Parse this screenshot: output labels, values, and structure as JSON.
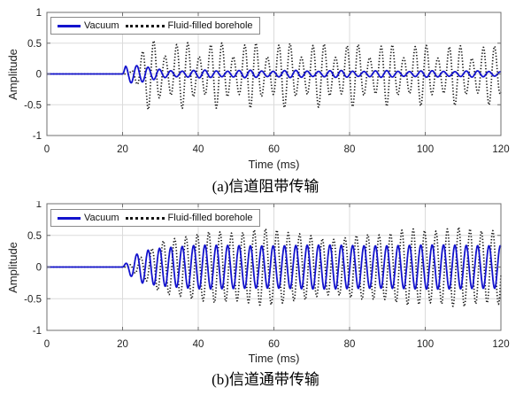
{
  "colors": {
    "vacuum_line": "#1313cd",
    "fluid_line": "#161616",
    "grid": "#dbdbdb",
    "axis": "#6f6f6f",
    "tick_label": "#1f1f1f",
    "background": "#ffffff"
  },
  "chart_data": [
    {
      "type": "line",
      "caption": "(a)信道阻带传输",
      "xlabel": "Time (ms)",
      "ylabel": "Amplitude",
      "xlim": [
        0,
        120
      ],
      "ylim": [
        -1,
        1
      ],
      "xticks": [
        0,
        20,
        40,
        60,
        80,
        100,
        120
      ],
      "yticks": [
        -1,
        -0.5,
        0,
        0.5,
        1
      ],
      "grid": true,
      "legend_position": "top-left",
      "series": [
        {
          "name": "Vacuum",
          "line_style": "solid",
          "color": "#1313cd",
          "waveform": {
            "freq_cycles_per_ms": 0.333,
            "onset_ms": 20,
            "phase_rad": 0,
            "envelope_keypoints": [
              [
                0,
                0
              ],
              [
                20,
                0
              ],
              [
                20.8,
                0.16
              ],
              [
                22.5,
                0.21
              ],
              [
                25,
                0.17
              ],
              [
                27.5,
                0.1
              ],
              [
                31,
                0.065
              ],
              [
                120,
                0.05
              ]
            ],
            "amplitude_modulation": {
              "depth": 0.3,
              "period_ms": 12,
              "phase_rad": 0
            }
          }
        },
        {
          "name": "Fluid-filled borehole",
          "line_style": "dotted",
          "color": "#161616",
          "waveform": {
            "freq_cycles_per_ms": 0.333,
            "onset_ms": 21.5,
            "phase_rad": 0,
            "envelope_keypoints": [
              [
                0,
                0
              ],
              [
                21.5,
                0
              ],
              [
                24,
                0.3
              ],
              [
                27,
                0.6
              ],
              [
                35,
                0.56
              ],
              [
                60,
                0.55
              ],
              [
                120,
                0.5
              ]
            ],
            "amplitude_modulation": {
              "depth": 0.5,
              "period_ms": 9,
              "phase_rad": 0.9
            }
          }
        }
      ]
    },
    {
      "type": "line",
      "caption": "(b)信道通带传输",
      "xlabel": "Time (ms)",
      "ylabel": "Amplitude",
      "xlim": [
        0,
        120
      ],
      "ylim": [
        -1,
        1
      ],
      "xticks": [
        0,
        20,
        40,
        60,
        80,
        100,
        120
      ],
      "yticks": [
        -1,
        -0.5,
        0,
        0.5,
        1
      ],
      "grid": true,
      "legend_position": "top-left",
      "series": [
        {
          "name": "Vacuum",
          "line_style": "solid",
          "color": "#1313cd",
          "waveform": {
            "freq_cycles_per_ms": 0.333,
            "onset_ms": 20,
            "phase_rad": 0,
            "envelope_keypoints": [
              [
                0,
                0
              ],
              [
                20,
                0
              ],
              [
                22,
                0.14
              ],
              [
                25,
                0.26
              ],
              [
                30,
                0.31
              ],
              [
                40,
                0.345
              ],
              [
                120,
                0.35
              ]
            ],
            "amplitude_modulation": {
              "depth": 0.04,
              "period_ms": 30,
              "phase_rad": 0
            }
          }
        },
        {
          "name": "Fluid-filled borehole",
          "line_style": "dotted",
          "color": "#161616",
          "waveform": {
            "freq_cycles_per_ms": 0.333,
            "onset_ms": 21,
            "phase_rad": 0,
            "envelope_keypoints": [
              [
                0,
                0
              ],
              [
                21,
                0
              ],
              [
                25,
                0.18
              ],
              [
                30,
                0.4
              ],
              [
                38,
                0.54
              ],
              [
                50,
                0.58
              ],
              [
                62,
                0.62
              ],
              [
                72,
                0.46
              ],
              [
                82,
                0.5
              ],
              [
                95,
                0.6
              ],
              [
                110,
                0.63
              ],
              [
                120,
                0.6
              ]
            ],
            "amplitude_modulation": {
              "depth": 0.08,
              "period_ms": 13,
              "phase_rad": 0
            }
          }
        }
      ]
    }
  ]
}
